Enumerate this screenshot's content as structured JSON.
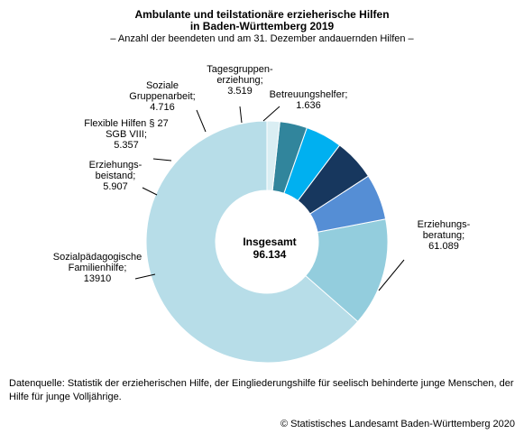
{
  "chart_data": {
    "type": "pie",
    "title_line1": "Ambulante und teilstationäre erzieherische Hilfen",
    "title_line2": "in Baden-Württemberg 2019",
    "subtitle": "– Anzahl der beendeten und am 31. Dezember andauernden Hilfen –",
    "center_label": "Insgesamt",
    "center_value": "96.134",
    "total": 96134,
    "slices": [
      {
        "name": "Erziehungsberatung",
        "value": 61089,
        "color": "#b7dde8",
        "label_lines": [
          "Erziehungs-",
          "beratung;",
          "61.089"
        ]
      },
      {
        "name": "Sozialpädagogische Familienhilfe",
        "value": 13910,
        "color": "#93cddd",
        "label_lines": [
          "Sozialpädagogische",
          "Familienhilfe;",
          "13910"
        ]
      },
      {
        "name": "Erziehungsbeistand",
        "value": 5907,
        "color": "#558ed5",
        "label_lines": [
          "Erziehungs-",
          "beistand;",
          "5.907"
        ]
      },
      {
        "name": "Flexible Hilfen § 27 SGB VIII",
        "value": 5357,
        "color": "#17375e",
        "label_lines": [
          "Flexible Hilfen § 27",
          "SGB VIII;",
          "5.357"
        ]
      },
      {
        "name": "Soziale Gruppenarbeit",
        "value": 4716,
        "color": "#00b0f0",
        "label_lines": [
          "Soziale",
          "Gruppenarbeit;",
          "4.716"
        ]
      },
      {
        "name": "Tagesgruppenerziehung",
        "value": 3519,
        "color": "#31859c",
        "label_lines": [
          "Tagesgruppen-",
          "erziehung;",
          "3.519"
        ]
      },
      {
        "name": "Betreuungshelfer",
        "value": 1636,
        "color": "#daeef3",
        "label_lines": [
          "Betreuungshelfer;",
          "1.636"
        ]
      }
    ]
  },
  "footer": {
    "source": "Datenquelle: Statistik der erzieherischen Hilfe, der Eingliederungshilfe für seelisch behinderte junge Menschen, der Hilfe für junge Volljährige.",
    "copyright": "© Statistisches Landesamt Baden-Württemberg 2020"
  }
}
